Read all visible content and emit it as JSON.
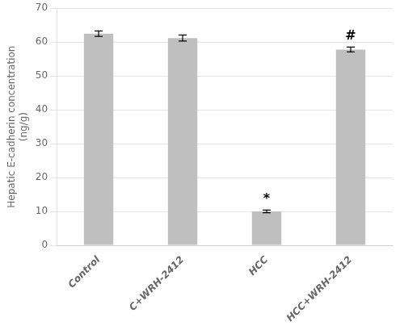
{
  "chart_data": {
    "type": "bar",
    "categories": [
      "Control",
      "C+WRH-2412",
      "HCC",
      "HCC+WRH-2412"
    ],
    "values": [
      62.5,
      61.2,
      10.0,
      57.8
    ],
    "errors": [
      0.8,
      0.9,
      0.4,
      0.7
    ],
    "color": "#bfbfbf",
    "ylabel": [
      "Hepatic E-cadherin concentration",
      "(ng/g)"
    ],
    "ylim": [
      0,
      70
    ],
    "yticks": [
      0,
      10,
      20,
      30,
      40,
      50,
      60,
      70
    ],
    "annotations": [
      {
        "category": "HCC",
        "text": "*"
      },
      {
        "category": "HCC+WRH-2412",
        "text": "#"
      }
    ],
    "grid": true
  }
}
